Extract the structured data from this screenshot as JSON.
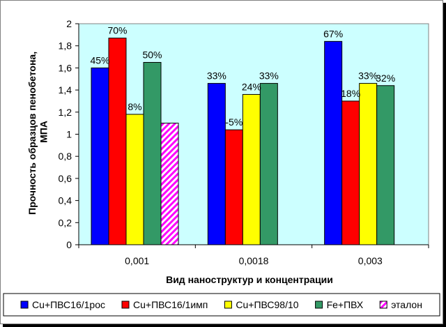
{
  "chart_data": {
    "type": "bar",
    "title": "",
    "xlabel": "Вид наноструктур и концентрации",
    "ylabel": "Прочность образцов пенобетона, МПА",
    "ylim": [
      0,
      2
    ],
    "ytick_step": 0.2,
    "y_tick_labels": [
      "0",
      "0,2",
      "0,4",
      "0,6",
      "0,8",
      "1",
      "1,2",
      "1,4",
      "1,6",
      "1,8",
      "2"
    ],
    "categories": [
      "0,001",
      "0,0018",
      "0,003"
    ],
    "grid": false,
    "plot_background": "#ccffff",
    "legend_position": "bottom",
    "series": [
      {
        "name": "Cu+ПВС16/1рос",
        "color": "#0000ff",
        "pattern": "solid",
        "values": [
          1.6,
          1.46,
          1.84
        ],
        "labels": [
          "45%",
          "33%",
          "67%"
        ]
      },
      {
        "name": "Cu+ПВС16/1имп",
        "color": "#ff0000",
        "pattern": "solid",
        "values": [
          1.87,
          1.04,
          1.3
        ],
        "labels": [
          "70%",
          "-5%",
          "18%"
        ]
      },
      {
        "name": "Cu+ПВС98/10",
        "color": "#ffff00",
        "pattern": "solid",
        "values": [
          1.18,
          1.36,
          1.46
        ],
        "labels": [
          "8%",
          "24%",
          "33%"
        ]
      },
      {
        "name": "Fe+ПВХ",
        "color": "#339966",
        "pattern": "solid",
        "values": [
          1.65,
          1.46,
          1.44
        ],
        "labels": [
          "50%",
          "33%",
          "32%"
        ]
      },
      {
        "name": "эталон",
        "color": "#ff00ff",
        "pattern": "diagonal-stripes",
        "values": [
          1.1,
          null,
          null
        ],
        "labels": [
          "",
          "",
          ""
        ]
      }
    ]
  }
}
